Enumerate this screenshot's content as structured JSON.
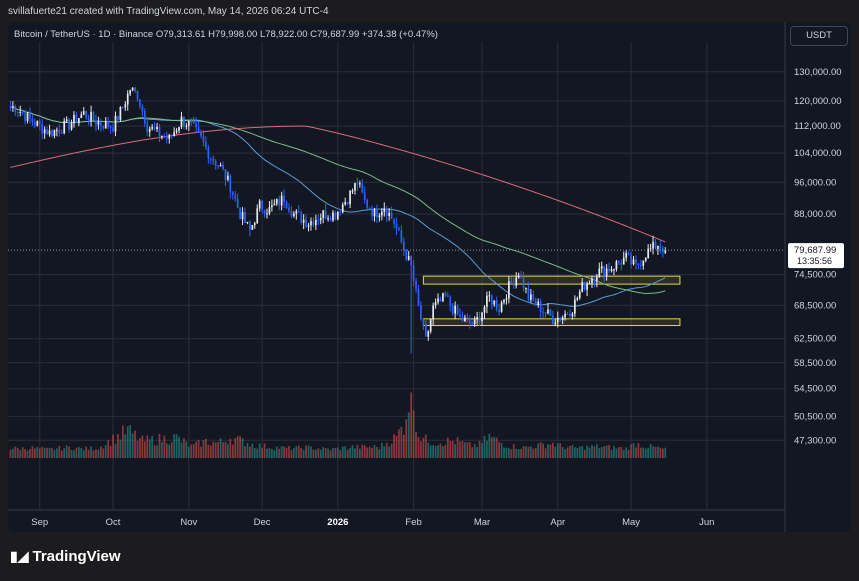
{
  "attribution": "svillafuerte21 created with TradingView.com, May 14, 2026 06:24 UTC-4",
  "symbol": {
    "name": "Bitcoin / TetherUS · 1D · Binance",
    "open": "O79,313.61",
    "high": "H79,998.00",
    "low": "L78,922.00",
    "close": "C79,687.99",
    "change": "+374.38 (+0.47%)"
  },
  "currency_button": "USDT",
  "brand": "TradingView",
  "price_label": "79,687.99",
  "countdown": "13:35:56",
  "colors": {
    "up": "#e8e9ee",
    "down": "#2962ff",
    "ma_fast": "#5b9bd5",
    "ma_mid": "#7fb98a",
    "ma_slow": "#d86d7c",
    "zone": "#e3d948",
    "vol_up": "#26a69a",
    "vol_down": "#ef5350"
  },
  "chart_data": {
    "type": "candlestick",
    "y_ticks": [
      "130,000.00",
      "120,000.00",
      "112,000.00",
      "104,000.00",
      "96,000.00",
      "88,000.00",
      "74,500.00",
      "68,500.00",
      "62,500.00",
      "58,500.00",
      "54,500.00",
      "50,500.00",
      "47,300.00"
    ],
    "y_tick_values": [
      130000,
      120000,
      112000,
      104000,
      96000,
      88000,
      74500,
      68500,
      62500,
      58500,
      54500,
      50500,
      47300
    ],
    "x_ticks": [
      "Sep",
      "Oct",
      "Nov",
      "Dec",
      "2026",
      "Feb",
      "Mar",
      "Apr",
      "May",
      "Jun"
    ],
    "x_tick_days": [
      0,
      30,
      61,
      91,
      122,
      153,
      181,
      212,
      242,
      273
    ],
    "y_scale": "log",
    "ylim": [
      43000,
      138000
    ],
    "last_price": 79687.99,
    "support_zones": [
      [
        72600,
        74200
      ],
      [
        64800,
        66000
      ]
    ],
    "price_anchors": [
      [
        -10,
        118000
      ],
      [
        -4,
        114000
      ],
      [
        4,
        110000
      ],
      [
        12,
        112500
      ],
      [
        18,
        116000
      ],
      [
        24,
        113000
      ],
      [
        30,
        112000
      ],
      [
        34,
        118000
      ],
      [
        37,
        124000
      ],
      [
        40,
        122000
      ],
      [
        44,
        112000
      ],
      [
        48,
        110000
      ],
      [
        53,
        108000
      ],
      [
        58,
        114000
      ],
      [
        62,
        112000
      ],
      [
        66,
        108000
      ],
      [
        70,
        103000
      ],
      [
        74,
        100000
      ],
      [
        78,
        95000
      ],
      [
        82,
        88000
      ],
      [
        86,
        84000
      ],
      [
        90,
        90000
      ],
      [
        94,
        89000
      ],
      [
        100,
        92000
      ],
      [
        104,
        88000
      ],
      [
        110,
        86000
      ],
      [
        116,
        88000
      ],
      [
        121,
        88000
      ],
      [
        126,
        92000
      ],
      [
        130,
        96000
      ],
      [
        133,
        91000
      ],
      [
        137,
        88000
      ],
      [
        141,
        90000
      ],
      [
        145,
        86000
      ],
      [
        149,
        80000
      ],
      [
        152,
        76000
      ],
      [
        155,
        68000
      ],
      [
        158,
        62000
      ],
      [
        161,
        68000
      ],
      [
        166,
        70000
      ],
      [
        172,
        66000
      ],
      [
        178,
        65000
      ],
      [
        184,
        70000
      ],
      [
        188,
        68000
      ],
      [
        192,
        72000
      ],
      [
        196,
        75000
      ],
      [
        200,
        70000
      ],
      [
        205,
        68000
      ],
      [
        210,
        66000
      ],
      [
        214,
        66500
      ],
      [
        218,
        68000
      ],
      [
        222,
        72000
      ],
      [
        228,
        75000
      ],
      [
        234,
        76000
      ],
      [
        240,
        78000
      ],
      [
        244,
        76000
      ],
      [
        248,
        79000
      ],
      [
        253,
        81000
      ],
      [
        256,
        79688
      ]
    ],
    "volume_spikes": [
      [
        -4,
        13
      ],
      [
        3,
        10
      ],
      [
        12,
        14
      ],
      [
        18,
        11
      ],
      [
        24,
        13
      ],
      [
        36,
        50
      ],
      [
        42,
        28
      ],
      [
        56,
        35
      ],
      [
        62,
        16
      ],
      [
        68,
        27
      ],
      [
        72,
        24
      ],
      [
        75,
        26
      ],
      [
        78,
        35
      ],
      [
        88,
        19
      ],
      [
        96,
        14
      ],
      [
        103,
        12
      ],
      [
        109,
        14
      ],
      [
        119,
        10
      ],
      [
        128,
        15
      ],
      [
        139,
        15
      ],
      [
        146,
        36
      ],
      [
        149,
        63
      ],
      [
        152,
        150
      ],
      [
        155,
        42
      ],
      [
        158,
        30
      ],
      [
        162,
        25
      ],
      [
        170,
        28
      ],
      [
        176,
        18
      ],
      [
        180,
        20
      ],
      [
        184,
        37
      ],
      [
        188,
        26
      ],
      [
        192,
        17
      ],
      [
        198,
        14
      ],
      [
        204,
        18
      ],
      [
        210,
        23
      ],
      [
        214,
        15
      ],
      [
        220,
        13
      ],
      [
        228,
        16
      ],
      [
        234,
        14
      ],
      [
        240,
        12
      ],
      [
        244,
        22
      ],
      [
        248,
        17
      ],
      [
        252,
        14
      ],
      [
        256,
        10
      ]
    ],
    "series": [
      {
        "type": "candlestick",
        "values_source": "price_anchors"
      },
      {
        "type": "volume",
        "values_source": "volume_spikes"
      },
      {
        "type": "line",
        "kind": "ma_fast"
      },
      {
        "type": "line",
        "kind": "ma_mid"
      },
      {
        "type": "line",
        "kind": "ma_slow"
      }
    ]
  }
}
